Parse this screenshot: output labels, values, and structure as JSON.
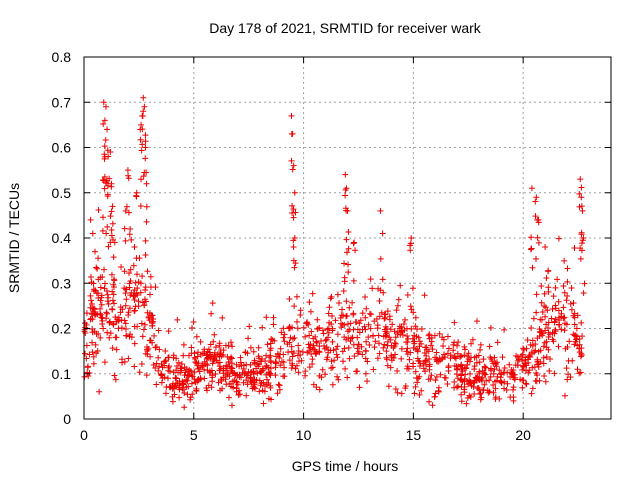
{
  "chart_data": {
    "type": "scatter",
    "title": "Day 178 of 2021, SRMTID for receiver wark",
    "xlabel": "GPS time / hours",
    "ylabel": "SRMTID / TECUs",
    "xlim": [
      0,
      24
    ],
    "ylim": [
      0,
      0.8
    ],
    "xticks": [
      0,
      5,
      10,
      15,
      20
    ],
    "yticks": [
      0,
      0.1,
      0.2,
      0.3,
      0.4,
      0.5,
      0.6,
      0.7,
      0.8
    ],
    "xtick_labels": [
      "0",
      "5",
      "10",
      "15",
      "20"
    ],
    "ytick_labels": [
      "0",
      "0.1",
      "0.2",
      "0.3",
      "0.4",
      "0.5",
      "0.6",
      "0.7",
      "0.8"
    ],
    "grid": true,
    "marker": "plus",
    "color": "#ee0000",
    "profile": [
      [
        0.0,
        0.16,
        0.05
      ],
      [
        0.5,
        0.22,
        0.06
      ],
      [
        1.0,
        0.25,
        0.08
      ],
      [
        1.5,
        0.2,
        0.05
      ],
      [
        2.0,
        0.24,
        0.07
      ],
      [
        2.5,
        0.26,
        0.07
      ],
      [
        3.0,
        0.2,
        0.05
      ],
      [
        3.5,
        0.12,
        0.03
      ],
      [
        4.0,
        0.09,
        0.025
      ],
      [
        4.5,
        0.08,
        0.025
      ],
      [
        5.0,
        0.11,
        0.03
      ],
      [
        5.5,
        0.12,
        0.03
      ],
      [
        6.0,
        0.12,
        0.035
      ],
      [
        6.5,
        0.11,
        0.03
      ],
      [
        7.0,
        0.1,
        0.025
      ],
      [
        7.5,
        0.11,
        0.025
      ],
      [
        8.0,
        0.1,
        0.025
      ],
      [
        8.5,
        0.12,
        0.03
      ],
      [
        9.0,
        0.14,
        0.04
      ],
      [
        9.5,
        0.16,
        0.05
      ],
      [
        10.0,
        0.17,
        0.05
      ],
      [
        10.5,
        0.16,
        0.045
      ],
      [
        11.0,
        0.16,
        0.05
      ],
      [
        11.5,
        0.17,
        0.05
      ],
      [
        12.0,
        0.2,
        0.06
      ],
      [
        12.5,
        0.18,
        0.05
      ],
      [
        13.0,
        0.17,
        0.05
      ],
      [
        13.5,
        0.18,
        0.05
      ],
      [
        14.0,
        0.16,
        0.045
      ],
      [
        14.5,
        0.17,
        0.05
      ],
      [
        15.0,
        0.17,
        0.045
      ],
      [
        15.5,
        0.12,
        0.04
      ],
      [
        16.0,
        0.11,
        0.035
      ],
      [
        16.5,
        0.11,
        0.035
      ],
      [
        17.0,
        0.12,
        0.035
      ],
      [
        17.5,
        0.1,
        0.03
      ],
      [
        18.0,
        0.1,
        0.03
      ],
      [
        18.5,
        0.1,
        0.03
      ],
      [
        19.0,
        0.09,
        0.03
      ],
      [
        19.5,
        0.09,
        0.025
      ],
      [
        20.0,
        0.11,
        0.03
      ],
      [
        20.5,
        0.16,
        0.05
      ],
      [
        21.0,
        0.2,
        0.06
      ],
      [
        21.5,
        0.22,
        0.06
      ],
      [
        22.0,
        0.21,
        0.06
      ],
      [
        22.5,
        0.17,
        0.05
      ],
      [
        22.7,
        0.15,
        0.05
      ]
    ],
    "spikes": [
      [
        0.3,
        0.44
      ],
      [
        0.4,
        0.41
      ],
      [
        0.5,
        0.37
      ],
      [
        0.9,
        0.7
      ],
      [
        0.95,
        0.66
      ],
      [
        1.0,
        0.69
      ],
      [
        1.05,
        0.64
      ],
      [
        1.1,
        0.58
      ],
      [
        1.2,
        0.59
      ],
      [
        1.25,
        0.52
      ],
      [
        1.3,
        0.47
      ],
      [
        1.4,
        0.39
      ],
      [
        1.9,
        0.46
      ],
      [
        2.0,
        0.55
      ],
      [
        2.1,
        0.42
      ],
      [
        2.3,
        0.38
      ],
      [
        2.4,
        0.5
      ],
      [
        2.6,
        0.65
      ],
      [
        2.65,
        0.67
      ],
      [
        2.7,
        0.71
      ],
      [
        2.75,
        0.69
      ],
      [
        2.8,
        0.6
      ],
      [
        2.85,
        0.52
      ],
      [
        9.45,
        0.67
      ],
      [
        9.5,
        0.63
      ],
      [
        9.55,
        0.56
      ],
      [
        9.6,
        0.5
      ],
      [
        9.6,
        0.4
      ],
      [
        11.9,
        0.54
      ],
      [
        11.95,
        0.51
      ],
      [
        12.0,
        0.46
      ],
      [
        12.3,
        0.39
      ],
      [
        13.5,
        0.46
      ],
      [
        13.6,
        0.41
      ],
      [
        14.9,
        0.4
      ],
      [
        20.4,
        0.51
      ],
      [
        20.6,
        0.49
      ],
      [
        20.7,
        0.44
      ],
      [
        21.0,
        0.38
      ],
      [
        22.6,
        0.53
      ],
      [
        22.65,
        0.49
      ],
      [
        22.7,
        0.46
      ],
      [
        22.75,
        0.4
      ]
    ]
  }
}
